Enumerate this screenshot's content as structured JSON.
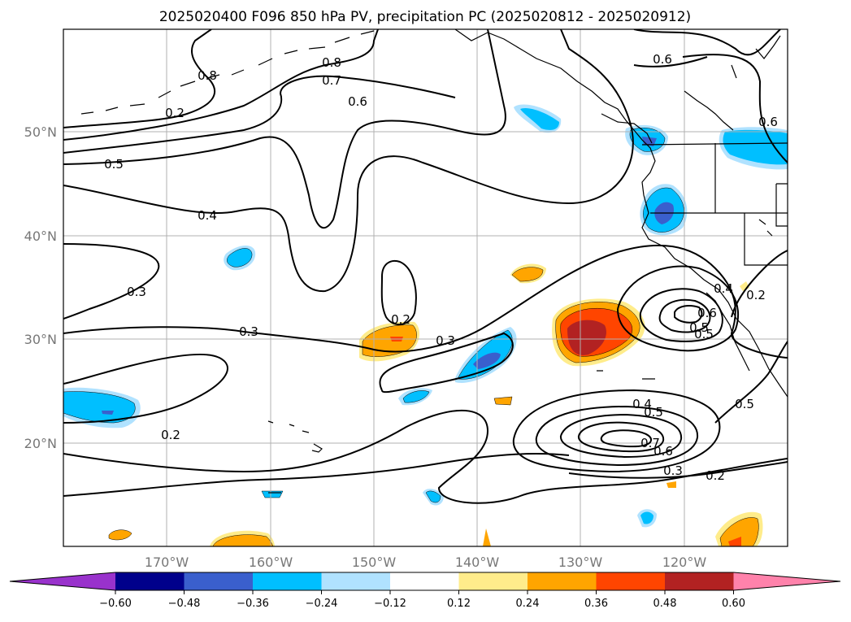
{
  "title": "2025020400 F096 850 hPa PV, precipitation PC (2025020812 - 2025020912)",
  "lon_ticks": [
    "170°W",
    "160°W",
    "150°W",
    "140°W",
    "130°W",
    "120°W"
  ],
  "lat_ticks": [
    "50°N",
    "40°N",
    "30°N",
    "20°N"
  ],
  "colorbar": {
    "colors": [
      "#9932cc",
      "#00008b",
      "#3a5fcd",
      "#00bfff",
      "#b0e2ff",
      "#ffffff",
      "#ffec8b",
      "#ffa500",
      "#ff4500",
      "#b22222",
      "#ff82ab"
    ],
    "tick_labels": [
      "−0.60",
      "−0.48",
      "−0.36",
      "−0.24",
      "−0.12",
      "0.12",
      "0.24",
      "0.36",
      "0.48",
      "0.60"
    ]
  },
  "contour_labels": [
    "0.8",
    "0.7",
    "0.6",
    "0.6",
    "0.5",
    "0.4",
    "0.3",
    "0.3",
    "0.2",
    "0.2",
    "0.3",
    "0.2",
    "0.4",
    "0.5",
    "0.5",
    "0.6",
    "0.7",
    "0.3",
    "0.2",
    "0.4",
    "0.5",
    "0.2",
    "0.5",
    "0.6",
    "0.6",
    "0.8"
  ]
}
